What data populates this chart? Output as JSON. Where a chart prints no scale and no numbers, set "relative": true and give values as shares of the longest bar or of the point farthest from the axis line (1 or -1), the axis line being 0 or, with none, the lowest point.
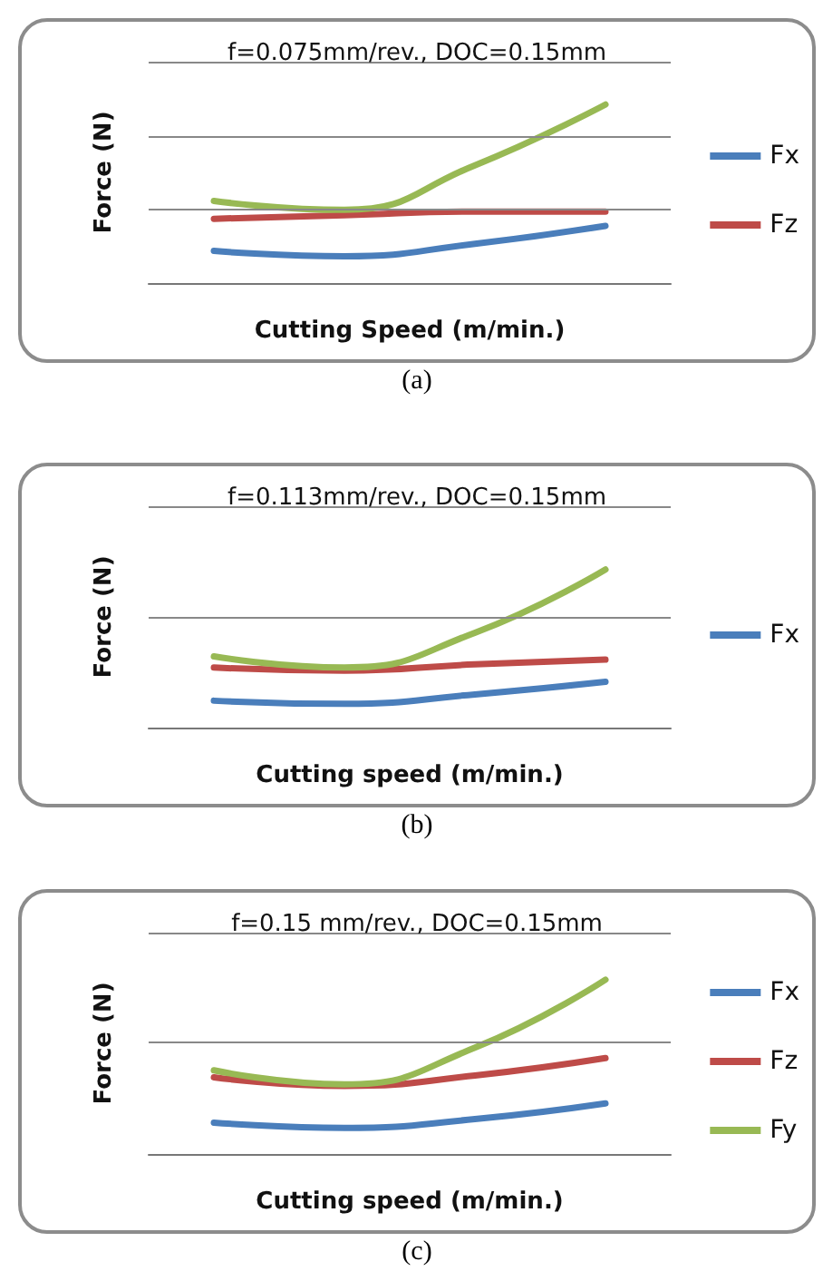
{
  "chart_data": [
    {
      "type": "line",
      "title": "f=0.075mm/rev., DOC=0.15mm",
      "xlabel": "Cutting Speed (m/min.)",
      "ylabel": "Force (N)",
      "annotations": [
        "(a)"
      ],
      "relative": true,
      "categories": [
        null,
        null,
        null,
        null
      ],
      "legend": "right",
      "marker": "none",
      "ref_lines": [
        {
          "axis": "y",
          "value": 0.41,
          "color": "#888888"
        },
        {
          "axis": "y",
          "value": 0.82,
          "color": "#888888"
        },
        {
          "axis": "y",
          "value": 1.24,
          "color": "#888888"
        }
      ],
      "series": [
        {
          "name": "Fx",
          "color": "#4a7ebb",
          "values": [
            0.18,
            0.15,
            0.22,
            0.32
          ]
        },
        {
          "name": "Fz",
          "color": "#be4b48",
          "values": [
            0.36,
            0.38,
            0.4,
            0.4
          ]
        },
        {
          "color": "#98b954",
          "values": [
            0.46,
            0.41,
            0.66,
            1
          ]
        }
      ]
    },
    {
      "type": "line",
      "title": "f=0.113mm/rev., DOC=0.15mm",
      "xlabel": "Cutting speed (m/min.)",
      "ylabel": "Force (N)",
      "annotations": [
        "(b)"
      ],
      "relative": true,
      "categories": [
        null,
        null,
        null,
        null
      ],
      "legend": "right",
      "marker": "none",
      "ref_lines": [
        {
          "axis": "y",
          "value": 0.7,
          "color": "#888888"
        },
        {
          "axis": "y",
          "value": 1.4,
          "color": "#888888"
        }
      ],
      "series": [
        {
          "name": "Fx",
          "color": "#4a7ebb",
          "values": [
            0.17,
            0.15,
            0.21,
            0.29
          ]
        },
        {
          "color": "#be4b48",
          "values": [
            0.38,
            0.36,
            0.4,
            0.43
          ]
        },
        {
          "color": "#98b954",
          "values": [
            0.45,
            0.38,
            0.6,
            1
          ]
        }
      ]
    },
    {
      "type": "line",
      "title": "f=0.15 mm/rev., DOC=0.15mm",
      "xlabel": "Cutting speed (m/min.)",
      "ylabel": "Force (N)",
      "annotations": [
        "(c)"
      ],
      "relative": true,
      "categories": [
        null,
        null,
        null,
        null
      ],
      "legend": "right",
      "marker": "none",
      "ref_lines": [
        {
          "axis": "y",
          "value": 0.64,
          "color": "#888888"
        },
        {
          "axis": "y",
          "value": 1.27,
          "color": "#888888"
        }
      ],
      "series": [
        {
          "name": "Fx",
          "color": "#4a7ebb",
          "values": [
            0.18,
            0.15,
            0.2,
            0.29
          ]
        },
        {
          "name": "Fz",
          "color": "#be4b48",
          "values": [
            0.44,
            0.39,
            0.45,
            0.55
          ]
        },
        {
          "name": "Fy",
          "color": "#98b954",
          "values": [
            0.48,
            0.4,
            0.61,
            1
          ]
        }
      ]
    }
  ]
}
